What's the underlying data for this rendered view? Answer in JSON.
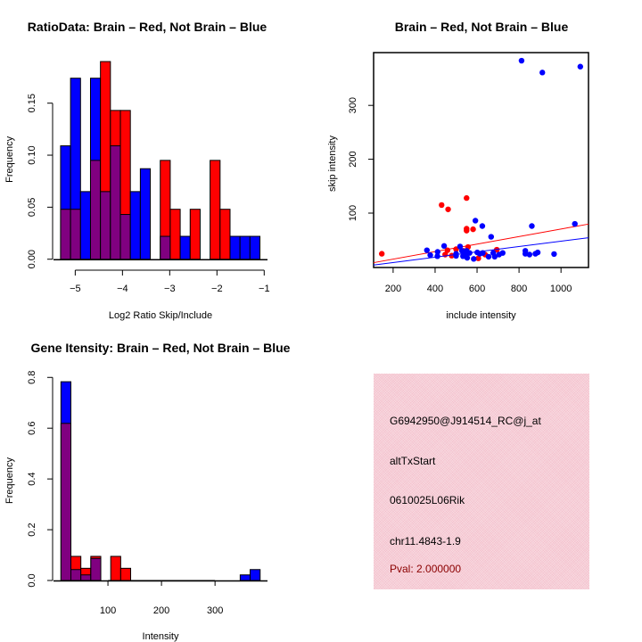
{
  "colors": {
    "red": "#ff0000",
    "blue": "#0000ff",
    "overlap": "#800080",
    "panel": "#f3bfcb",
    "pval": "#8b0000"
  },
  "chart_data": [
    {
      "type": "bar",
      "title": "RatioData: Brain – Red, Not Brain – Blue",
      "xlabel": "Log2 Ratio Skip/Include",
      "ylabel": "Frequency",
      "xlim": [
        -5.46,
        -0.93
      ],
      "ylim": [
        0,
        0.1986
      ],
      "xticks": [
        -5,
        -4,
        -3,
        -2,
        -1
      ],
      "xtick_labels": [
        "−5",
        "−4",
        "−3",
        "−2",
        "−1"
      ],
      "yticks": [
        0,
        0.05,
        0.1,
        0.15
      ],
      "ytick_labels": [
        "0.00",
        "0.05",
        "0.10",
        "0.15"
      ],
      "bin_start": -5.31,
      "bin_width": 0.211,
      "series": [
        {
          "name": "Brain",
          "color": "red",
          "values": [
            0.048,
            0.048,
            0,
            0.095,
            0.19,
            0.143,
            0.143,
            0,
            0,
            0,
            0.095,
            0.048,
            0,
            0.048,
            0,
            0.095,
            0.048,
            0,
            0,
            0
          ]
        },
        {
          "name": "Not Brain",
          "color": "blue",
          "values": [
            0.109,
            0.174,
            0.065,
            0.174,
            0.065,
            0.109,
            0.043,
            0.065,
            0.087,
            0,
            0.022,
            0,
            0.022,
            0,
            0,
            0,
            0,
            0.022,
            0.022,
            0.022
          ]
        }
      ]
    },
    {
      "type": "scatter",
      "title": "Brain – Red, Not Brain – Blue",
      "xlabel": "include intensity",
      "ylabel": "skip intensity",
      "xlim": [
        107,
        1131
      ],
      "ylim": [
        -1,
        398
      ],
      "xticks": [
        200,
        400,
        600,
        800,
        1000
      ],
      "xtick_labels": [
        "200",
        "400",
        "600",
        "800",
        "1000"
      ],
      "yticks": [
        100,
        200,
        300
      ],
      "ytick_labels": [
        "100",
        "200",
        "300"
      ],
      "series": [
        {
          "name": "Brain",
          "color": "red",
          "points": [
            [
              146,
              24.5
            ],
            [
              431,
              115
            ],
            [
              462,
              107
            ],
            [
              550,
              128
            ],
            [
              550,
              71
            ],
            [
              550,
              67.5
            ],
            [
              581,
              70
            ],
            [
              448,
              23
            ],
            [
              459,
              31
            ],
            [
              479,
              21
            ],
            [
              500,
              33
            ],
            [
              557,
              37
            ],
            [
              606,
              16
            ],
            [
              638,
              23
            ],
            [
              694,
              32
            ],
            [
              536,
              30
            ]
          ],
          "fit": [
            [
              107,
              8
            ],
            [
              1131,
              79.6
            ]
          ]
        },
        {
          "name": "Not Brain",
          "color": "blue",
          "points": [
            [
              812,
              383
            ],
            [
              911,
              361
            ],
            [
              1092,
              372
            ],
            [
              1066,
              80
            ],
            [
              861,
              76
            ],
            [
              592,
              86
            ],
            [
              625,
              76
            ],
            [
              667,
              56
            ],
            [
              443,
              39
            ],
            [
              361,
              31
            ],
            [
              377,
              22
            ],
            [
              412,
              28
            ],
            [
              411,
              20
            ],
            [
              519,
              38
            ],
            [
              500,
              24.5
            ],
            [
              528,
              30
            ],
            [
              543,
              24.5
            ],
            [
              553,
              17
            ],
            [
              564,
              26
            ],
            [
              584,
              15
            ],
            [
              601,
              27
            ],
            [
              613,
              24.5
            ],
            [
              627,
              26
            ],
            [
              655,
              19
            ],
            [
              677,
              26
            ],
            [
              684,
              19
            ],
            [
              705,
              23
            ],
            [
              722,
              26
            ],
            [
              830,
              30
            ],
            [
              830,
              24.5
            ],
            [
              850,
              23
            ],
            [
              878,
              24.5
            ],
            [
              889,
              27
            ],
            [
              967,
              24
            ],
            [
              500,
              20.6
            ],
            [
              533,
              20
            ],
            [
              550,
              30
            ]
          ],
          "fit": [
            [
              107,
              3.6
            ],
            [
              1131,
              54.3
            ]
          ]
        }
      ]
    },
    {
      "type": "bar",
      "title": "Gene Itensity: Brain – Red, Not Brain – Blue",
      "xlabel": "Intensity",
      "ylabel": "Frequency",
      "xlim": [
        -1.7,
        398
      ],
      "ylim": [
        0,
        0.815
      ],
      "xticks": [
        100,
        200,
        300
      ],
      "xtick_labels": [
        "100",
        "200",
        "300"
      ],
      "yticks": [
        0,
        0.2,
        0.4,
        0.6,
        0.8
      ],
      "ytick_labels": [
        "0.0",
        "0.2",
        "0.4",
        "0.6",
        "0.8"
      ],
      "bin_start": 12.2,
      "bin_width": 18.6,
      "series": [
        {
          "name": "Brain",
          "color": "red",
          "values": [
            0.619,
            0.095,
            0.048,
            0.095,
            0,
            0.095,
            0.048,
            0,
            0,
            0,
            0,
            0,
            0,
            0,
            0,
            0,
            0,
            0,
            0,
            0
          ]
        },
        {
          "name": "Not Brain",
          "color": "blue",
          "values": [
            0.783,
            0.043,
            0.022,
            0.087,
            0,
            0,
            0,
            0,
            0,
            0,
            0,
            0,
            0,
            0,
            0,
            0,
            0,
            0,
            0.022,
            0.043
          ]
        }
      ]
    }
  ],
  "info_panel": {
    "probe_id": "G6942950@J914514_RC@j_at",
    "event_type": "altTxStart",
    "gene": "0610025L06Rik",
    "location": "chr11.4843-1.9",
    "pval": "Pval: 2.000000"
  }
}
